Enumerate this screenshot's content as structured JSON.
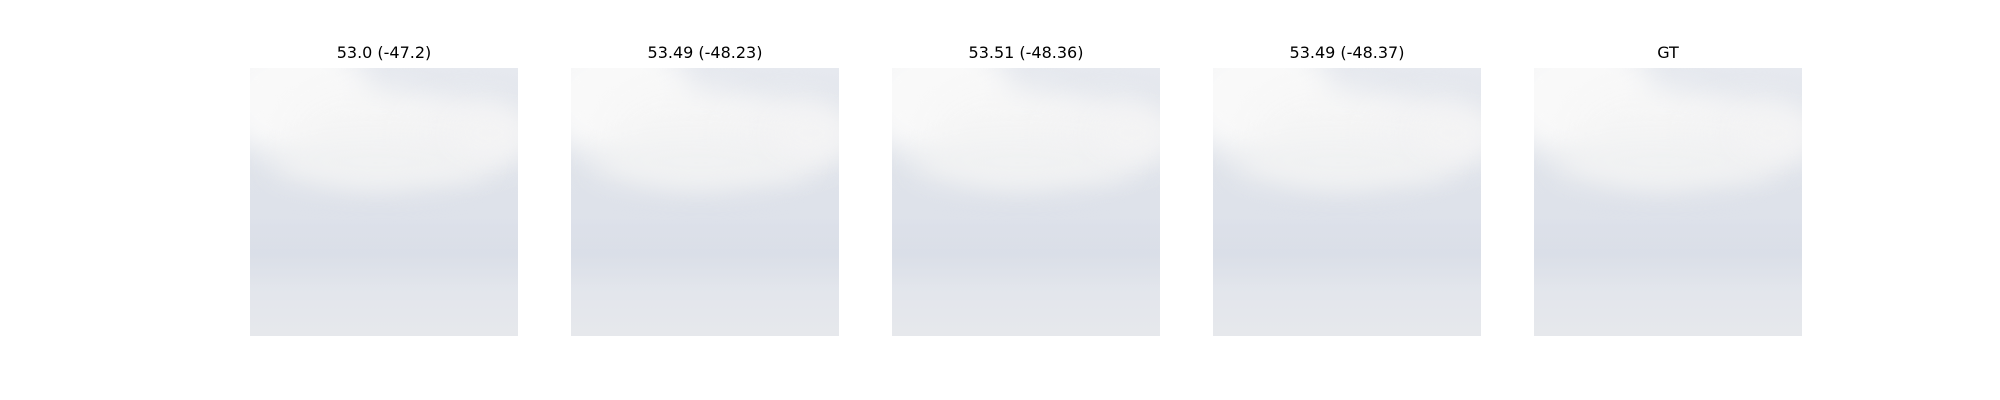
{
  "panels": [
    {
      "title": "53.0 (-47.2)"
    },
    {
      "title": "53.49 (-48.23)"
    },
    {
      "title": "53.51 (-48.36)"
    },
    {
      "title": "53.49 (-48.37)"
    },
    {
      "title": "GT"
    }
  ],
  "colors": {
    "sky": "#e0e4eb",
    "cloud": "#f7f7f7",
    "background": "#ffffff"
  }
}
